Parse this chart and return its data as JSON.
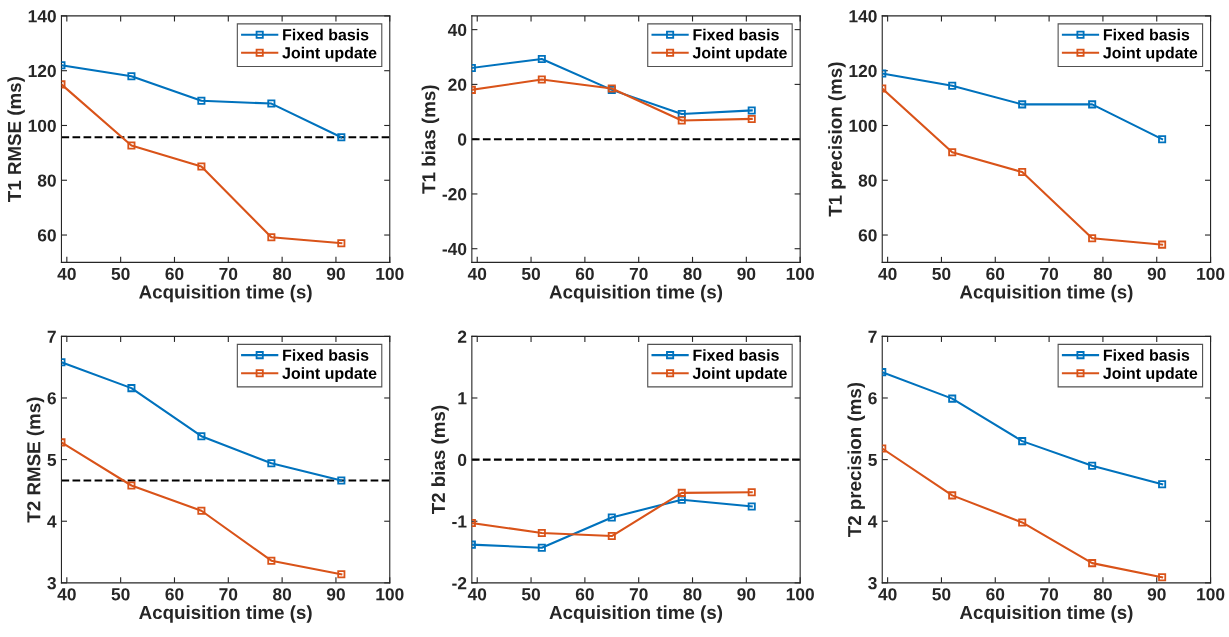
{
  "chart_data": [
    {
      "type": "line",
      "xlabel": "Acquisition time (s)",
      "ylabel": "T1 RMSE (ms)",
      "x": [
        39,
        52,
        65,
        78,
        91
      ],
      "xlim": [
        39,
        100
      ],
      "xticks": [
        40,
        50,
        60,
        70,
        80,
        90,
        100
      ],
      "ylim": [
        50,
        140
      ],
      "yticks": [
        60,
        80,
        100,
        120,
        140
      ],
      "marker": "square",
      "legend": "top right",
      "grid": false,
      "series": [
        {
          "name": "Fixed basis",
          "color": "#0072bd",
          "values": [
            122,
            118,
            109,
            108,
            95.7
          ]
        },
        {
          "name": "Joint update",
          "color": "#d95319",
          "values": [
            115,
            92.7,
            85,
            59.2,
            57
          ]
        }
      ],
      "ref_lines": [
        {
          "axis": "y",
          "value": 95.7,
          "color": "#000000",
          "line_style": "dashed"
        }
      ]
    },
    {
      "type": "line",
      "xlabel": "Acquisition time (s)",
      "ylabel": "T1 bias (ms)",
      "x": [
        39,
        52,
        65,
        78,
        91
      ],
      "xlim": [
        39,
        100
      ],
      "xticks": [
        40,
        50,
        60,
        70,
        80,
        90,
        100
      ],
      "ylim": [
        -45,
        45
      ],
      "yticks": [
        {
          "value": -40,
          "label": "-40"
        },
        {
          "value": -20,
          "label": "-20"
        },
        0,
        20,
        40
      ],
      "marker": "square",
      "legend": "top right",
      "grid": false,
      "series": [
        {
          "name": "Fixed basis",
          "color": "#0072bd",
          "values": [
            26,
            29.3,
            18,
            9.2,
            10.5
          ]
        },
        {
          "name": "Joint update",
          "color": "#d95319",
          "values": [
            18,
            21.8,
            18.5,
            6.8,
            7.4
          ]
        }
      ],
      "ref_lines": [
        {
          "axis": "y",
          "value": 0,
          "color": "#000000",
          "line_style": "dashed"
        }
      ]
    },
    {
      "type": "line",
      "xlabel": "Acquisition time (s)",
      "ylabel": "T1 precision (ms)",
      "x": [
        39,
        52,
        65,
        78,
        91
      ],
      "xlim": [
        39,
        100
      ],
      "xticks": [
        40,
        50,
        60,
        70,
        80,
        90,
        100
      ],
      "ylim": [
        50,
        140
      ],
      "yticks": [
        60,
        80,
        100,
        120,
        140
      ],
      "marker": "square",
      "legend": "top right",
      "grid": false,
      "series": [
        {
          "name": "Fixed basis",
          "color": "#0072bd",
          "values": [
            119,
            114.5,
            107.7,
            107.7,
            95
          ]
        },
        {
          "name": "Joint update",
          "color": "#d95319",
          "values": [
            113.5,
            90.2,
            83,
            58.8,
            56.5
          ]
        }
      ]
    },
    {
      "type": "line",
      "xlabel": "Acquisition time (s)",
      "ylabel": "T2 RMSE (ms)",
      "x": [
        39,
        52,
        65,
        78,
        91
      ],
      "xlim": [
        39,
        100
      ],
      "xticks": [
        40,
        50,
        60,
        70,
        80,
        90,
        100
      ],
      "ylim": [
        3,
        7
      ],
      "yticks": [
        3,
        4,
        5,
        6,
        7
      ],
      "marker": "square",
      "legend": "top right",
      "grid": false,
      "series": [
        {
          "name": "Fixed basis",
          "color": "#0072bd",
          "values": [
            6.58,
            6.16,
            5.38,
            4.94,
            4.66
          ]
        },
        {
          "name": "Joint update",
          "color": "#d95319",
          "values": [
            5.28,
            4.58,
            4.17,
            3.36,
            3.14
          ]
        }
      ],
      "ref_lines": [
        {
          "axis": "y",
          "value": 4.66,
          "color": "#000000",
          "line_style": "dashed"
        }
      ]
    },
    {
      "type": "line",
      "xlabel": "Acquisition time (s)",
      "ylabel": "T2 bias (ms)",
      "x": [
        39,
        52,
        65,
        78,
        91
      ],
      "xlim": [
        39,
        100
      ],
      "xticks": [
        40,
        50,
        60,
        70,
        80,
        90,
        100
      ],
      "ylim": [
        -2,
        2
      ],
      "yticks": [
        {
          "value": -2,
          "label": "-2"
        },
        {
          "value": -1,
          "label": "-1"
        },
        0,
        1,
        2
      ],
      "marker": "square",
      "legend": "top right",
      "grid": false,
      "series": [
        {
          "name": "Fixed basis",
          "color": "#0072bd",
          "values": [
            -1.38,
            -1.43,
            -0.94,
            -0.65,
            -0.76
          ]
        },
        {
          "name": "Joint update",
          "color": "#d95319",
          "values": [
            -1.03,
            -1.19,
            -1.24,
            -0.54,
            -0.53
          ]
        }
      ],
      "ref_lines": [
        {
          "axis": "y",
          "value": 0,
          "color": "#000000",
          "line_style": "dashed"
        }
      ]
    },
    {
      "type": "line",
      "xlabel": "Acquisition time (s)",
      "ylabel": "T2 precision (ms)",
      "x": [
        39,
        52,
        65,
        78,
        91
      ],
      "xlim": [
        39,
        100
      ],
      "xticks": [
        40,
        50,
        60,
        70,
        80,
        90,
        100
      ],
      "ylim": [
        3,
        7
      ],
      "yticks": [
        3,
        4,
        5,
        6,
        7
      ],
      "marker": "square",
      "legend": "top right",
      "grid": false,
      "series": [
        {
          "name": "Fixed basis",
          "color": "#0072bd",
          "values": [
            6.42,
            5.99,
            5.3,
            4.9,
            4.6
          ]
        },
        {
          "name": "Joint update",
          "color": "#d95319",
          "values": [
            5.18,
            4.42,
            3.98,
            3.32,
            3.09
          ]
        }
      ]
    }
  ]
}
